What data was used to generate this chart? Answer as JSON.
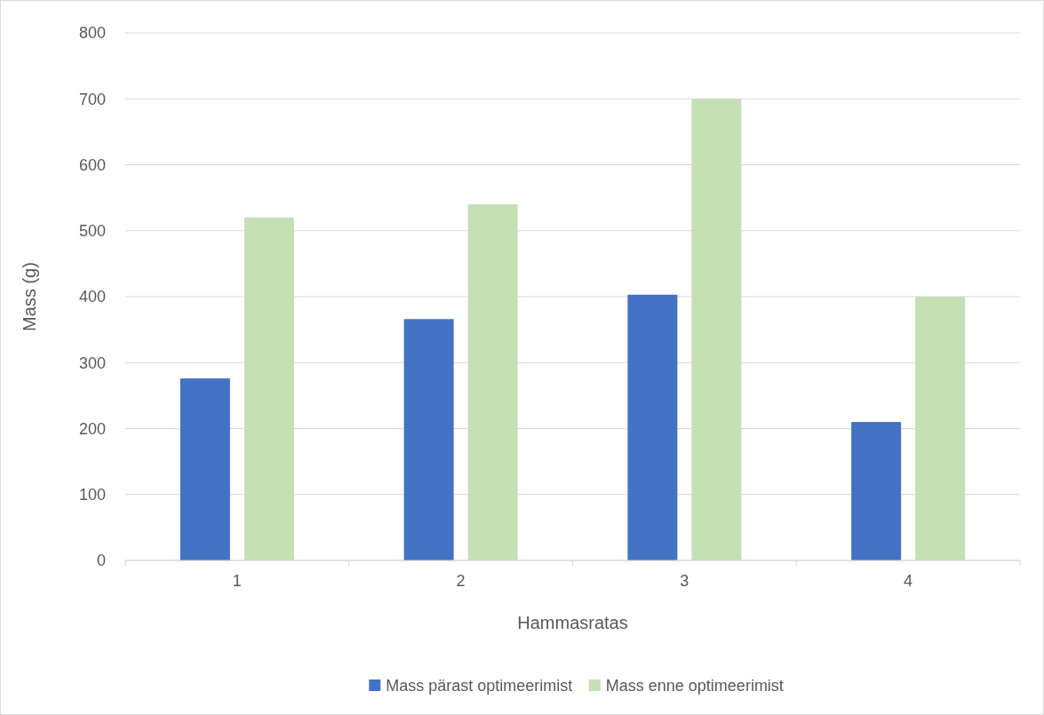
{
  "chart_data": {
    "type": "bar",
    "xlabel": "Hammasratas",
    "ylabel": "Mass (g)",
    "categories": [
      "1",
      "2",
      "3",
      "4"
    ],
    "series": [
      {
        "name": "Mass pärast optimeerimist",
        "color": "#4472c4",
        "values": [
          276,
          366,
          403,
          210
        ]
      },
      {
        "name": "Mass enne optimeerimist",
        "color": "#c5e0b4",
        "values": [
          520,
          540,
          700,
          400
        ]
      }
    ],
    "ylim": [
      0,
      800
    ],
    "yticks": [
      0,
      100,
      200,
      300,
      400,
      500,
      600,
      700,
      800
    ],
    "grid": "y",
    "legend": "bottom"
  }
}
